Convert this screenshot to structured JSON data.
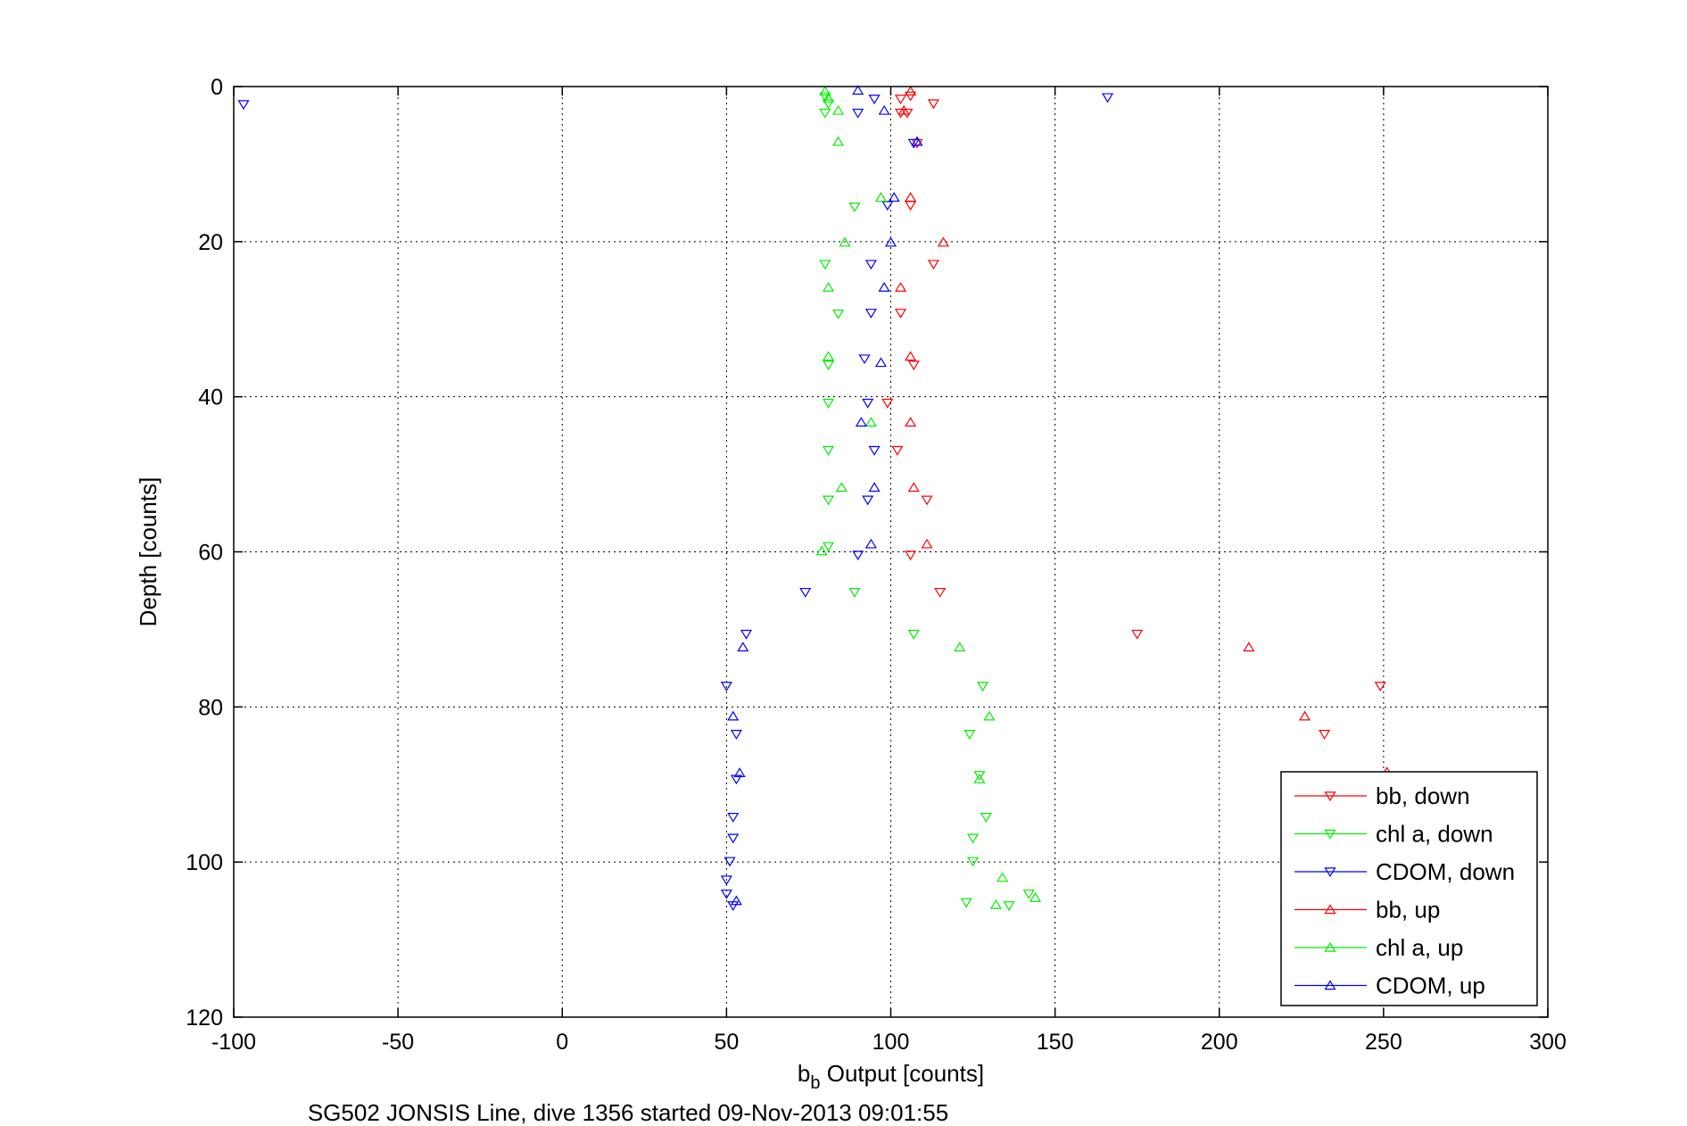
{
  "chart_data": {
    "type": "scatter",
    "title": "",
    "xlabel_main": "b",
    "xlabel_sub": "b",
    "xlabel_rest": " Output [counts]",
    "ylabel": "Depth [counts]",
    "caption": "SG502 JONSIS Line, dive 1356 started 09-Nov-2013 09:01:55",
    "xlim": [
      -100,
      300
    ],
    "ylim": [
      0,
      120
    ],
    "y_reversed": true,
    "grid": true,
    "legend_position": "bottom-right",
    "xticks": [
      "-100",
      "-50",
      "0",
      "50",
      "100",
      "150",
      "200",
      "250",
      "300"
    ],
    "xtick_values": [
      -100,
      -50,
      0,
      50,
      100,
      150,
      200,
      250,
      300
    ],
    "yticks": [
      "0",
      "20",
      "40",
      "60",
      "80",
      "100",
      "120"
    ],
    "ytick_values": [
      0,
      20,
      40,
      60,
      80,
      100,
      120
    ],
    "series": [
      {
        "name": "bb, down",
        "color": "#ff0000",
        "marker": "triangle-down",
        "points": [
          [
            106,
            1.2
          ],
          [
            103,
            1.6
          ],
          [
            113,
            2.2
          ],
          [
            105,
            3.4
          ],
          [
            103,
            3.4
          ],
          [
            108,
            7.3
          ],
          [
            106,
            15.3
          ],
          [
            113,
            22.9
          ],
          [
            103,
            29.2
          ],
          [
            107,
            35.9
          ],
          [
            99,
            40.8
          ],
          [
            102,
            46.9
          ],
          [
            111,
            53.3
          ],
          [
            106,
            60.4
          ],
          [
            115,
            65.2
          ],
          [
            175,
            70.6
          ],
          [
            249,
            77.3
          ],
          [
            232,
            83.5
          ]
        ]
      },
      {
        "name": "chl a, down",
        "color": "#00ee00",
        "marker": "triangle-down",
        "points": [
          [
            80,
            1.3
          ],
          [
            81,
            2.2
          ],
          [
            80,
            3.4
          ],
          [
            89,
            15.5
          ],
          [
            80,
            22.9
          ],
          [
            84,
            29.3
          ],
          [
            81,
            35.9
          ],
          [
            81,
            40.8
          ],
          [
            81,
            46.9
          ],
          [
            81,
            53.3
          ],
          [
            81,
            59.3
          ],
          [
            89,
            65.2
          ],
          [
            107,
            70.6
          ],
          [
            128,
            77.3
          ],
          [
            124,
            83.5
          ],
          [
            127,
            88.8
          ],
          [
            129,
            94.2
          ],
          [
            125,
            96.9
          ],
          [
            125,
            99.9
          ],
          [
            142,
            104.1
          ],
          [
            123,
            105.2
          ],
          [
            136,
            105.6
          ]
        ]
      },
      {
        "name": "CDOM, down",
        "color": "#0000ff",
        "marker": "triangle-down",
        "points": [
          [
            -97,
            2.3
          ],
          [
            166,
            1.4
          ],
          [
            95,
            1.6
          ],
          [
            90,
            3.4
          ],
          [
            107,
            7.3
          ],
          [
            99,
            15.3
          ],
          [
            94,
            22.9
          ],
          [
            94,
            29.2
          ],
          [
            92,
            35.1
          ],
          [
            93,
            40.8
          ],
          [
            95,
            46.9
          ],
          [
            93,
            53.3
          ],
          [
            90,
            60.4
          ],
          [
            74,
            65.2
          ],
          [
            56,
            70.6
          ],
          [
            50,
            77.3
          ],
          [
            53,
            83.5
          ],
          [
            53,
            89.3
          ],
          [
            52,
            94.2
          ],
          [
            52,
            96.9
          ],
          [
            51,
            99.9
          ],
          [
            50,
            102.3
          ],
          [
            50,
            104.1
          ],
          [
            52,
            105.6
          ]
        ]
      },
      {
        "name": "bb, up",
        "color": "#ff0000",
        "marker": "triangle-up",
        "points": [
          [
            106,
            0.6
          ],
          [
            104,
            3.1
          ],
          [
            108,
            7.1
          ],
          [
            106,
            14.3
          ],
          [
            116,
            20.1
          ],
          [
            103,
            25.9
          ],
          [
            106,
            34.8
          ],
          [
            106,
            43.3
          ],
          [
            107,
            51.7
          ],
          [
            111,
            59.0
          ],
          [
            209,
            72.3
          ],
          [
            226,
            81.2
          ],
          [
            251,
            88.4
          ]
        ]
      },
      {
        "name": "chl a, up",
        "color": "#00ee00",
        "marker": "triangle-up",
        "points": [
          [
            80,
            0.6
          ],
          [
            81,
            1.5
          ],
          [
            84,
            3.1
          ],
          [
            84,
            7.1
          ],
          [
            97,
            14.3
          ],
          [
            86,
            20.1
          ],
          [
            81,
            25.9
          ],
          [
            81,
            34.8
          ],
          [
            94,
            43.3
          ],
          [
            85,
            51.7
          ],
          [
            79,
            59.9
          ],
          [
            121,
            72.3
          ],
          [
            130,
            81.2
          ],
          [
            127,
            89.3
          ],
          [
            134,
            102.0
          ],
          [
            144,
            104.6
          ],
          [
            132,
            105.5
          ]
        ]
      },
      {
        "name": "CDOM, up",
        "color": "#0000ff",
        "marker": "triangle-up",
        "points": [
          [
            90,
            0.5
          ],
          [
            98,
            3.1
          ],
          [
            108,
            7.1
          ],
          [
            101,
            14.3
          ],
          [
            100,
            20.1
          ],
          [
            98,
            25.9
          ],
          [
            97,
            35.6
          ],
          [
            91,
            43.3
          ],
          [
            95,
            51.7
          ],
          [
            94,
            59.0
          ],
          [
            55,
            72.3
          ],
          [
            52,
            81.2
          ],
          [
            54,
            88.5
          ],
          [
            53,
            105.0
          ]
        ]
      }
    ]
  }
}
